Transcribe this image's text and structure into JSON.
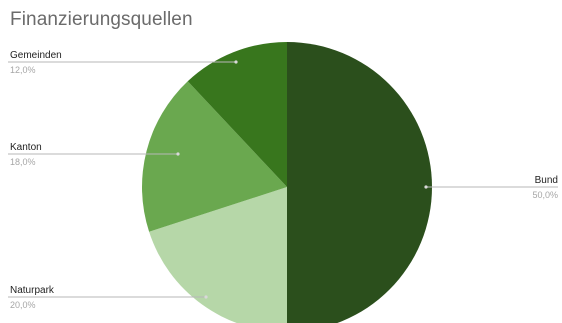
{
  "chart_data": {
    "type": "pie",
    "title": "Finanzierungsquellen",
    "slices": [
      {
        "name": "Bund",
        "value": 50.0,
        "label": "50,0%",
        "color": "#2b4f1c"
      },
      {
        "name": "Naturpark",
        "value": 20.0,
        "label": "20,0%",
        "color": "#b6d7a8"
      },
      {
        "name": "Kanton",
        "value": 18.0,
        "label": "18,0%",
        "color": "#6aa84f"
      },
      {
        "name": "Gemeinden",
        "value": 12.0,
        "label": "12,0%",
        "color": "#38761d"
      }
    ],
    "legend": "none",
    "label_style": "leader-lines"
  }
}
